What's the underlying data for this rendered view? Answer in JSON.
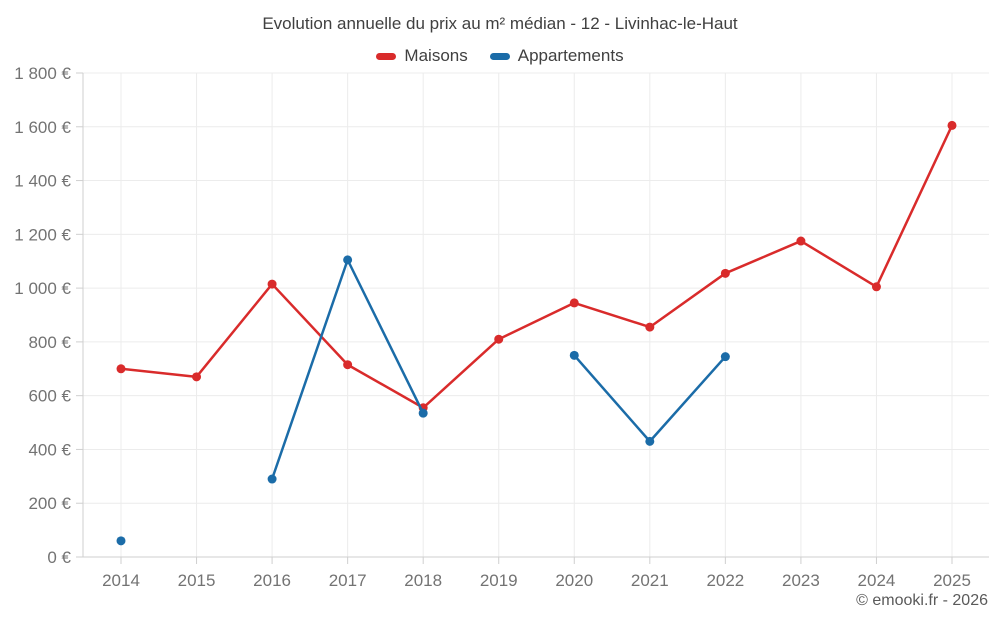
{
  "title": "Evolution annuelle du prix au m² médian - 12 - Livinhac-le-Haut",
  "footer": "© emooki.fr - 2026",
  "colors": {
    "maisons": "#d92b2b",
    "appartements": "#1b6ca8",
    "grid": "#ececec",
    "axis": "#cfcfcf",
    "tick_label": "#737373",
    "title_text": "#404040",
    "footer_text": "#5a5a5a"
  },
  "chart_data": {
    "type": "line",
    "categories": [
      "2014",
      "2015",
      "2016",
      "2017",
      "2018",
      "2019",
      "2020",
      "2021",
      "2022",
      "2023",
      "2024",
      "2025"
    ],
    "series": [
      {
        "name": "Maisons",
        "color": "#d92b2b",
        "values": [
          700,
          670,
          1015,
          715,
          555,
          810,
          945,
          855,
          1055,
          1175,
          1005,
          1605
        ]
      },
      {
        "name": "Appartements",
        "color": "#1b6ca8",
        "values": [
          60,
          null,
          290,
          1105,
          535,
          null,
          750,
          430,
          745,
          null,
          null,
          null
        ]
      }
    ],
    "title": "Evolution annuelle du prix au m² médian - 12 - Livinhac-le-Haut",
    "xlabel": "",
    "ylabel": "",
    "y_unit": "€",
    "ylim": [
      0,
      1800
    ],
    "ytick_step": 200,
    "grid": true,
    "legend_position": "top"
  }
}
